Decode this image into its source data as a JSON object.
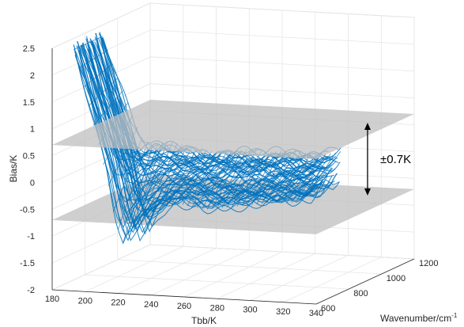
{
  "chart_data": {
    "type": "surface",
    "xlabel": "Tbb/K",
    "ylabel": "Wavenumber/cm",
    "ylabel_sup": "-1",
    "zlabel": "Bias/K",
    "xlim": [
      180,
      340
    ],
    "ylim": [
      600,
      1200
    ],
    "zlim": [
      -2,
      2.5
    ],
    "x_ticks": [
      "180",
      "200",
      "220",
      "240",
      "260",
      "280",
      "300",
      "320",
      "340"
    ],
    "y_ticks": [
      "600",
      "800",
      "1000",
      "1200"
    ],
    "z_ticks": [
      "-2",
      "-1.5",
      "-1",
      "-0.5",
      "0",
      "0.5",
      "1",
      "1.5",
      "2",
      "2.5"
    ],
    "grid": true,
    "surface_color": "#0072BD",
    "threshold_planes": [
      0.7,
      -0.7
    ],
    "plane_color": "#bfbfbf",
    "annotation": "±0.7K",
    "surface_profile": {
      "tbb": [
        190,
        200,
        210,
        215,
        220,
        225,
        230,
        240,
        250,
        260,
        270,
        280,
        290,
        300,
        310,
        320,
        330,
        335
      ],
      "bias_upper": [
        2.45,
        1.6,
        0.85,
        0.55,
        0.45,
        0.5,
        0.55,
        0.5,
        0.45,
        0.4,
        0.45,
        0.5,
        0.45,
        0.5,
        0.5,
        0.45,
        0.5,
        0.55
      ],
      "bias_lower": [
        2.45,
        1.3,
        0.1,
        -0.7,
        -1.1,
        -0.8,
        -0.6,
        -0.4,
        -0.3,
        -0.35,
        -0.4,
        -0.35,
        -0.3,
        -0.25,
        -0.2,
        -0.2,
        -0.1,
        0.1
      ]
    }
  }
}
